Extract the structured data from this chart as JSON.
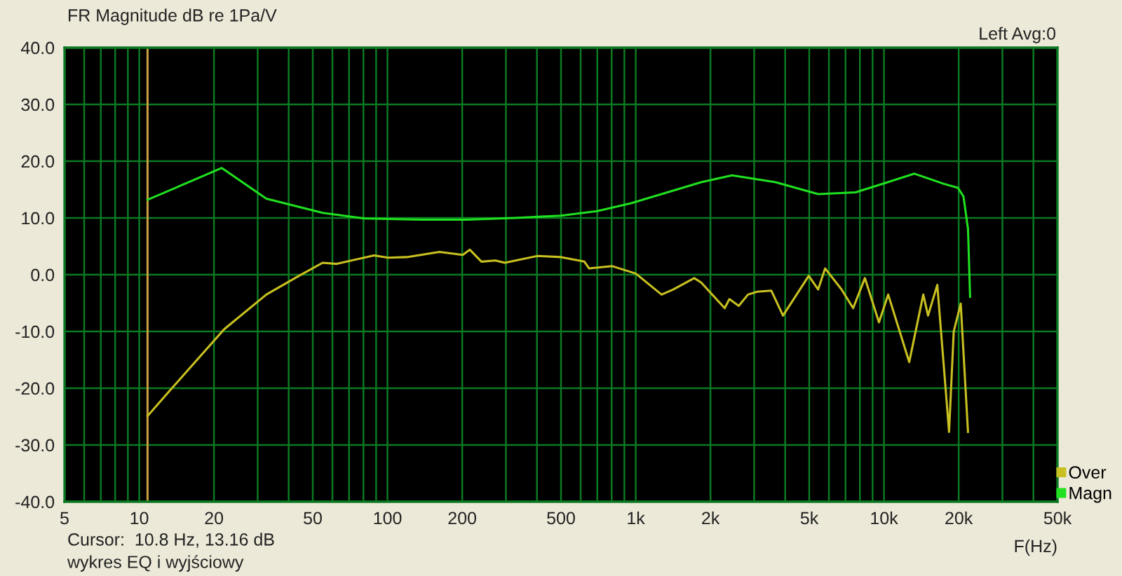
{
  "chart_data": {
    "type": "line",
    "title": "FR Magnitude dB re 1Pa/V",
    "subtitle": "Left Avg:0",
    "xlabel": "F(Hz)",
    "annotations": [
      "Cursor:  10.8 Hz, 13.16 dB",
      "wykres EQ i wyjściowy"
    ],
    "log": "x",
    "xlim": [
      5,
      50000
    ],
    "ylim": [
      -40,
      40
    ],
    "xticks": [
      5,
      {
        "value": 6,
        "label": null
      },
      {
        "value": 7,
        "label": null
      },
      {
        "value": 8,
        "label": null
      },
      {
        "value": 9,
        "label": null
      },
      10,
      20,
      {
        "value": 30,
        "label": null
      },
      {
        "value": 40,
        "label": null
      },
      50,
      {
        "value": 60,
        "label": null
      },
      {
        "value": 70,
        "label": null
      },
      {
        "value": 80,
        "label": null
      },
      {
        "value": 90,
        "label": null
      },
      100,
      200,
      {
        "value": 300,
        "label": null
      },
      {
        "value": 400,
        "label": null
      },
      500,
      {
        "value": 600,
        "label": null
      },
      {
        "value": 700,
        "label": null
      },
      {
        "value": 800,
        "label": null
      },
      {
        "value": 900,
        "label": null
      },
      {
        "value": 1000,
        "label": "1k"
      },
      {
        "value": 2000,
        "label": "2k"
      },
      {
        "value": 3000,
        "label": null
      },
      {
        "value": 4000,
        "label": null
      },
      {
        "value": 5000,
        "label": "5k"
      },
      {
        "value": 6000,
        "label": null
      },
      {
        "value": 7000,
        "label": null
      },
      {
        "value": 8000,
        "label": null
      },
      {
        "value": 9000,
        "label": null
      },
      {
        "value": 10000,
        "label": "10k"
      },
      {
        "value": 20000,
        "label": "20k"
      },
      {
        "value": 30000,
        "label": null
      },
      {
        "value": 40000,
        "label": null
      },
      {
        "value": 50000,
        "label": "50k"
      }
    ],
    "yticks": [
      {
        "value": -40,
        "label": "-40.0"
      },
      {
        "value": -30,
        "label": "-30.0"
      },
      {
        "value": -20,
        "label": "-20.0"
      },
      {
        "value": -10,
        "label": "-10.0"
      },
      {
        "value": 0,
        "label": "0.0"
      },
      {
        "value": 10,
        "label": "10.0"
      },
      {
        "value": 20,
        "label": "20.0"
      },
      {
        "value": 30,
        "label": "30.0"
      },
      {
        "value": 40,
        "label": "40.0"
      }
    ],
    "grid": true,
    "legend": "bottom right",
    "ref_lines": [
      {
        "axis": "x",
        "value": 10.8,
        "color": "#c8a040"
      }
    ],
    "series": [
      {
        "name": "Over",
        "color": "#c8c020",
        "x": [
          10.8,
          13.1,
          22,
          32.5,
          44,
          54.8,
          62.4,
          88.3,
          100.6,
          119.5,
          161.9,
          201,
          214.7,
          239,
          272,
          297,
          402,
          500,
          621,
          649,
          805,
          1000,
          1271,
          1416,
          1721,
          1836,
          2282,
          2383,
          2600,
          2832,
          3090,
          3516,
          3920,
          4977,
          5430,
          5795,
          6745,
          7514,
          8380,
          9546,
          10400,
          12640,
          14400,
          15050,
          16400,
          18290,
          19100,
          20380,
          21800
        ],
        "values": [
          -24.9,
          -20.7,
          -9.6,
          -3.5,
          -0.2,
          2.1,
          1.9,
          3.4,
          3.0,
          3.1,
          4.0,
          3.5,
          4.4,
          2.3,
          2.5,
          2.1,
          3.3,
          3.1,
          2.3,
          1.1,
          1.5,
          0.2,
          -3.5,
          -2.6,
          -0.6,
          -1.4,
          -5.9,
          -4.3,
          -5.5,
          -3.5,
          -3.0,
          -2.8,
          -7.2,
          -0.2,
          -2.6,
          1.1,
          -2.6,
          -5.9,
          -0.6,
          -8.4,
          -3.5,
          -15.4,
          -3.5,
          -7.2,
          -1.8,
          -27.7,
          -10.0,
          -5.1,
          -27.7
        ]
      },
      {
        "name": "Magn",
        "color": "#20e020",
        "x": [
          10.8,
          21.5,
          32.5,
          54.8,
          81,
          136,
          209,
          326,
          500,
          700,
          958,
          1836,
          2445,
          3657,
          5430,
          7680,
          10360,
          13264,
          17430,
          19860,
          20900,
          21800,
          22230
        ],
        "values": [
          13.2,
          18.8,
          13.4,
          10.9,
          9.9,
          9.7,
          9.7,
          10.0,
          10.4,
          11.2,
          12.6,
          16.3,
          17.5,
          16.3,
          14.2,
          14.5,
          16.3,
          17.8,
          16.0,
          15.3,
          13.8,
          8.1,
          -3.9
        ]
      }
    ]
  }
}
